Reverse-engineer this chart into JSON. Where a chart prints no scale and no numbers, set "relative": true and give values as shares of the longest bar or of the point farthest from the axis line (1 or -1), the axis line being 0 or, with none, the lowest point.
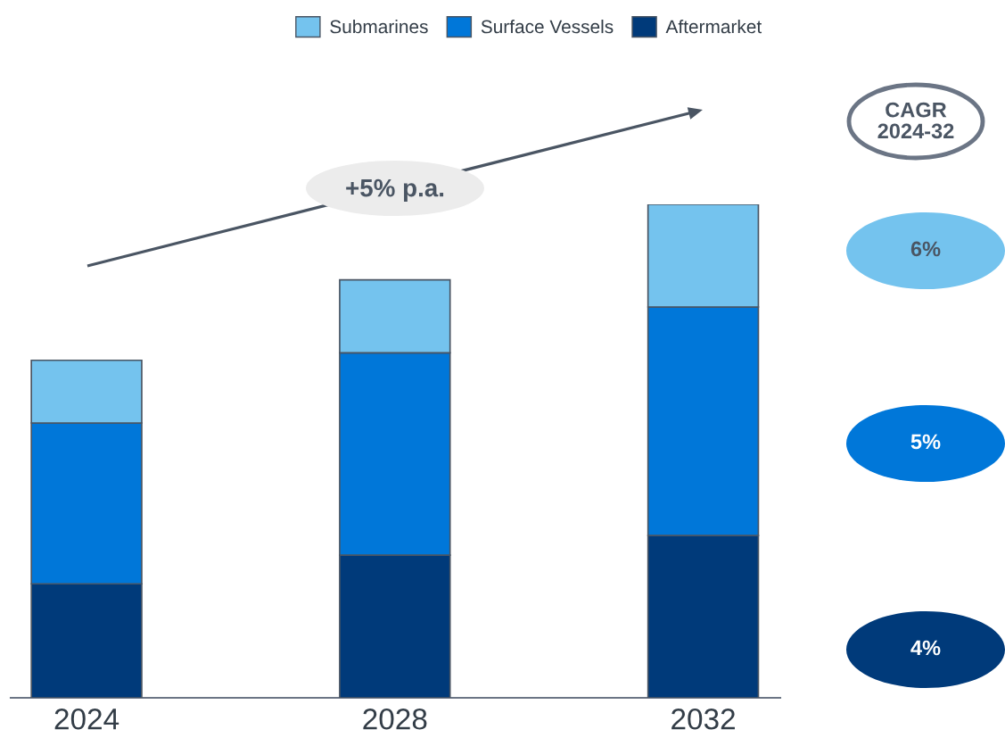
{
  "chart_data": {
    "type": "bar",
    "stacked": true,
    "relative": true,
    "legend": "top",
    "categories": [
      "2024",
      "2028",
      "2032"
    ],
    "series": [
      {
        "name": "Aftermarket",
        "color": "#003a7a",
        "values": [
          0.231,
          0.289,
          0.329
        ]
      },
      {
        "name": "Surface Vessels",
        "color": "#0077d9",
        "values": [
          0.326,
          0.41,
          0.463
        ]
      },
      {
        "name": "Submarines",
        "color": "#74c3ee",
        "values": [
          0.127,
          0.148,
          0.208
        ]
      }
    ],
    "annotations": [
      "+5% p.a.",
      "CAGR 2024-32",
      "6%",
      "5%",
      "4%"
    ]
  }
}
